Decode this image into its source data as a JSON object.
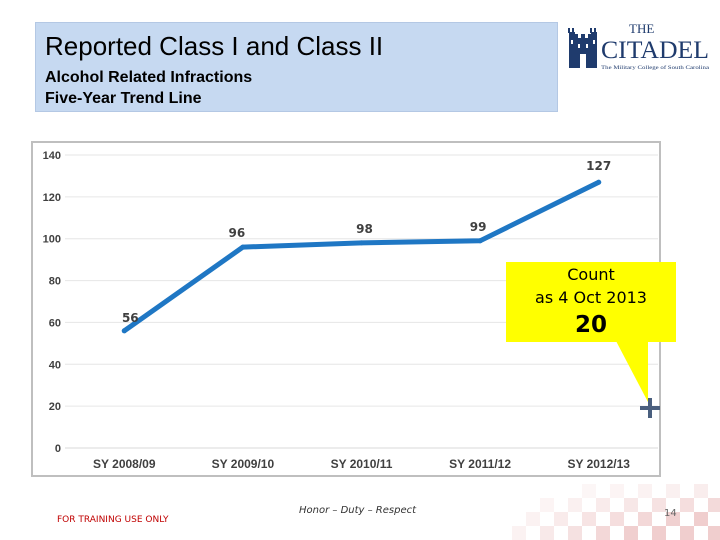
{
  "header": {
    "title": "Reported Class I and Class II",
    "subtitle_line1": "Alcohol Related Infractions",
    "subtitle_line2": "Five-Year Trend Line"
  },
  "logo": {
    "name": "the-citadel-logo",
    "text_the": "THE",
    "text_citadel": "CITADEL",
    "tagline": "The Military College of South Carolina",
    "color": "#1f3b6d"
  },
  "chart_data": {
    "type": "line",
    "title": "",
    "xlabel": "",
    "ylabel": "",
    "categories": [
      "SY 2008/09",
      "SY 2009/10",
      "SY 2010/11",
      "SY 2011/12",
      "SY 2012/13"
    ],
    "series": [
      {
        "values": [
          56,
          96,
          98,
          99,
          127
        ],
        "color": "#1f77c4"
      }
    ],
    "data_labels": [
      "56",
      "96",
      "98",
      "99",
      "127"
    ],
    "ylim": [
      0,
      140
    ],
    "yticks": [
      "0",
      "20",
      "40",
      "60",
      "80",
      "100",
      "120",
      "140"
    ],
    "grid": true,
    "legend": "none",
    "callout": {
      "line1": "Count",
      "line2": "as 4 Oct 2013",
      "value": "20",
      "color": "#ffff00"
    },
    "marker_value": 20
  },
  "footer": {
    "left": "FOR TRAINING USE ONLY",
    "center": "Honor – Duty – Respect",
    "page_number": "14"
  }
}
